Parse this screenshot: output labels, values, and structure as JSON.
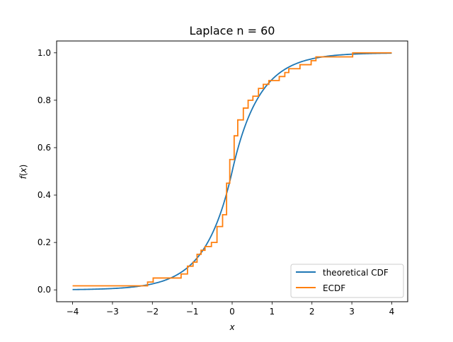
{
  "chart_data": {
    "type": "line",
    "title": "Laplace n = 60",
    "xlabel": "x",
    "ylabel_prefix": "f",
    "ylabel_arg": "x",
    "xlim": [
      -4.4,
      4.4
    ],
    "ylim": [
      -0.05,
      1.05
    ],
    "xticks": [
      -4,
      -3,
      -2,
      -1,
      0,
      1,
      2,
      3,
      4
    ],
    "xtick_labels": [
      "−4",
      "−3",
      "−2",
      "−1",
      "0",
      "1",
      "2",
      "3",
      "4"
    ],
    "yticks": [
      0.0,
      0.2,
      0.4,
      0.6,
      0.8,
      1.0
    ],
    "ytick_labels": [
      "0.0",
      "0.2",
      "0.4",
      "0.6",
      "0.8",
      "1.0"
    ],
    "grid": false,
    "legend_position": "bottom-right",
    "series": [
      {
        "name": "theoretical CDF",
        "color": "#1f77b4",
        "kind": "laplace-cdf",
        "mu": 0,
        "b": 0.67,
        "x_range": [
          -4,
          4
        ]
      },
      {
        "name": "ECDF",
        "color": "#ff7f0e",
        "kind": "step",
        "x": [
          -4.0,
          -2.12,
          -1.98,
          -1.28,
          -1.12,
          -0.98,
          -0.88,
          -0.78,
          -0.68,
          -0.52,
          -0.38,
          -0.24,
          -0.14,
          -0.06,
          0.05,
          0.14,
          0.28,
          0.4,
          0.52,
          0.66,
          0.78,
          0.92,
          1.18,
          1.32,
          1.42,
          1.7,
          1.98,
          2.1,
          3.02,
          4.0
        ],
        "y": [
          0.017,
          0.033,
          0.05,
          0.067,
          0.1,
          0.117,
          0.15,
          0.167,
          0.183,
          0.2,
          0.267,
          0.317,
          0.45,
          0.55,
          0.65,
          0.717,
          0.767,
          0.8,
          0.817,
          0.85,
          0.867,
          0.883,
          0.9,
          0.917,
          0.933,
          0.95,
          0.967,
          0.983,
          1.0,
          1.0
        ]
      }
    ]
  }
}
